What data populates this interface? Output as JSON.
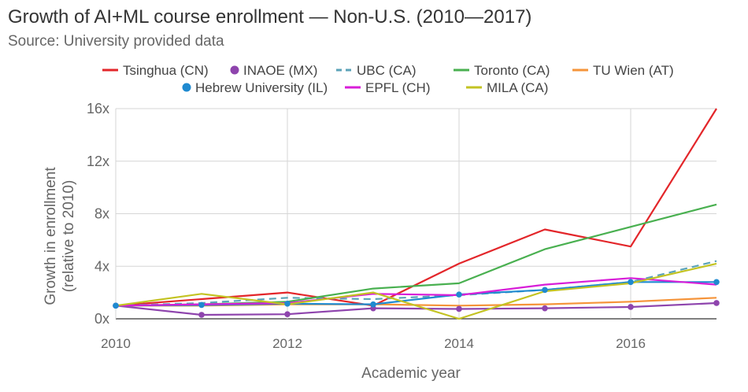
{
  "chart_data": {
    "type": "line",
    "title": "Growth of AI+ML course enrollment — Non-U.S. (2010—2017)",
    "subtitle": "Source: University provided data",
    "xlabel": "Academic year",
    "ylabel_line1": "Growth in enrollment",
    "ylabel_line2": "(relative to 2010)",
    "x": [
      2010,
      2011,
      2012,
      2013,
      2014,
      2015,
      2016,
      2017
    ],
    "xlim": [
      2010,
      2017
    ],
    "ylim": [
      0,
      16
    ],
    "x_ticks": [
      2010,
      2012,
      2014,
      2016
    ],
    "y_ticks": [
      0,
      4,
      8,
      12,
      16
    ],
    "y_tick_labels": [
      "0x",
      "4x",
      "8x",
      "12x",
      "16x"
    ],
    "grid": true,
    "legend_position": "top",
    "series": [
      {
        "name": "Tsinghua (CN)",
        "color": "#e3262a",
        "marker": "none",
        "dashed": false,
        "values": [
          1.0,
          1.5,
          2.0,
          1.0,
          4.2,
          6.8,
          5.5,
          16.0
        ]
      },
      {
        "name": "INAOE (MX)",
        "color": "#8e44ad",
        "marker": "circle",
        "dashed": false,
        "values": [
          1.0,
          0.3,
          0.35,
          0.8,
          0.75,
          0.8,
          0.9,
          1.2
        ]
      },
      {
        "name": "UBC (CA)",
        "color": "#5ba3b8",
        "marker": "none",
        "dashed": true,
        "values": [
          1.0,
          1.2,
          1.6,
          1.5,
          1.8,
          2.2,
          2.8,
          4.4
        ]
      },
      {
        "name": "Toronto (CA)",
        "color": "#49b050",
        "marker": "none",
        "dashed": false,
        "values": [
          1.0,
          1.1,
          1.3,
          2.3,
          2.7,
          5.3,
          7.0,
          8.7
        ]
      },
      {
        "name": "TU Wien (AT)",
        "color": "#f5943a",
        "marker": "none",
        "dashed": false,
        "values": [
          1.0,
          1.0,
          1.1,
          1.1,
          1.0,
          1.1,
          1.3,
          1.6
        ]
      },
      {
        "name": "Hebrew University (IL)",
        "color": "#1f8ad0",
        "marker": "circle",
        "dashed": false,
        "values": [
          1.0,
          1.05,
          1.15,
          1.1,
          1.85,
          2.2,
          2.8,
          2.8
        ]
      },
      {
        "name": "EPFL (CH)",
        "color": "#d81ed8",
        "marker": "none",
        "dashed": false,
        "values": [
          1.0,
          1.1,
          1.2,
          1.9,
          1.8,
          2.6,
          3.1,
          2.6
        ]
      },
      {
        "name": "MILA (CA)",
        "color": "#c3c322",
        "marker": "none",
        "dashed": false,
        "values": [
          1.0,
          1.9,
          1.1,
          2.0,
          0.0,
          2.1,
          2.7,
          4.2
        ]
      }
    ]
  }
}
